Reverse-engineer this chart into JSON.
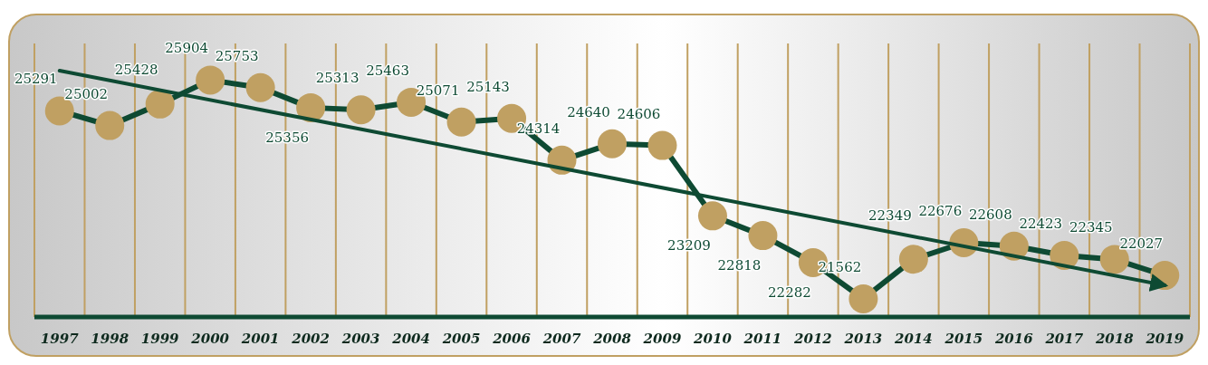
{
  "chart_data": {
    "type": "line",
    "categories": [
      "1997",
      "1998",
      "1999",
      "2000",
      "2001",
      "2002",
      "2003",
      "2004",
      "2005",
      "2006",
      "2007",
      "2008",
      "2009",
      "2010",
      "2011",
      "2012",
      "2013",
      "2014",
      "2015",
      "2016",
      "2017",
      "2018",
      "2019"
    ],
    "series": [
      {
        "color": "#0e4a33",
        "values": [
          25291,
          25002,
          25428,
          25904,
          25753,
          25356,
          25313,
          25463,
          25071,
          25143,
          24314,
          24640,
          24606,
          23209,
          22818,
          22282,
          21562,
          22349,
          22676,
          22608,
          22423,
          22345,
          22027
        ],
        "marker": "circle"
      },
      {
        "type": "line",
        "color": "#0e4a33",
        "values": [
          26090,
          null,
          null,
          null,
          null,
          null,
          null,
          null,
          null,
          null,
          null,
          null,
          null,
          null,
          null,
          null,
          null,
          null,
          null,
          null,
          null,
          null,
          21830
        ],
        "marker": "none",
        "value_labels": [
          null,
          null,
          null,
          null,
          null,
          null,
          null,
          null,
          null,
          null,
          null,
          null,
          null,
          null,
          null,
          null,
          null,
          null,
          null,
          null,
          null,
          null,
          null
        ]
      }
    ],
    "data_labels": true,
    "grid": "x",
    "tick_labels": "x"
  }
}
